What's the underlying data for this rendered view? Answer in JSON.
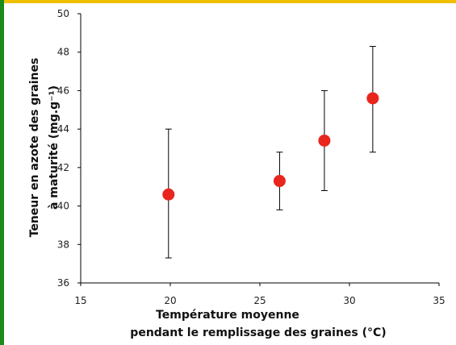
{
  "colors": {
    "accent_left": "#1a8a1a",
    "accent_top": "#f0c000",
    "marker": "#e8261e",
    "axis": "#000000",
    "errorbar": "#000000"
  },
  "chart_data": {
    "type": "scatter",
    "xlabel_lines": [
      "Température moyenne",
      "pendant le remplissage des graines (°C)"
    ],
    "ylabel_lines": [
      "Teneur en azote des graines",
      "à maturité (mg.g⁻¹)"
    ],
    "xlim": [
      15,
      35
    ],
    "ylim": [
      36,
      50
    ],
    "xticks": [
      15,
      20,
      25,
      30,
      35
    ],
    "yticks": [
      36,
      38,
      40,
      42,
      44,
      46,
      48,
      50
    ],
    "grid": false,
    "legend": "none",
    "points": [
      {
        "x": 19.9,
        "y": 40.6,
        "err_low": 37.3,
        "err_high": 44.0
      },
      {
        "x": 26.1,
        "y": 41.3,
        "err_low": 39.8,
        "err_high": 42.8
      },
      {
        "x": 28.6,
        "y": 43.4,
        "err_low": 40.8,
        "err_high": 46.0
      },
      {
        "x": 31.3,
        "y": 45.6,
        "err_low": 42.8,
        "err_high": 48.3
      }
    ]
  }
}
